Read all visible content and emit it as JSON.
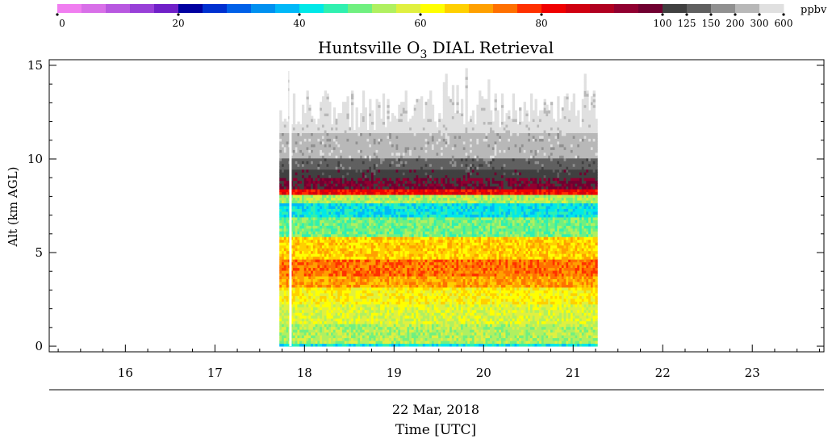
{
  "chart_data": {
    "type": "heatmap",
    "title": "Huntsville O",
    "title_sub": "3",
    "title_suffix": " DIAL Retrieval",
    "ylabel": "Alt (km AGL)",
    "date_label": "22 Mar, 2018",
    "xlabel": "Time [UTC]",
    "xlim": [
      15.15,
      23.8
    ],
    "ylim": [
      -0.3,
      15.3
    ],
    "x_ticks": [
      16,
      17,
      18,
      19,
      20,
      21,
      22,
      23
    ],
    "y_ticks": [
      0,
      5,
      10,
      15
    ],
    "data_x_range": [
      17.72,
      21.25
    ],
    "data_y_range": [
      0,
      15
    ],
    "gap_x": 17.83,
    "colorbar": {
      "unit": "ppbv",
      "ticks": [
        "0",
        "20",
        "40",
        "60",
        "80",
        "100",
        "125",
        "150",
        "200",
        "300",
        "600"
      ],
      "colors": [
        "#f07ef0",
        "#d870e8",
        "#b858e0",
        "#9840d8",
        "#7020c8",
        "#0000a0",
        "#0030d0",
        "#0060e8",
        "#0090f0",
        "#00b8f8",
        "#00e8e8",
        "#30f0b0",
        "#70f080",
        "#b0f060",
        "#e0f040",
        "#ffff00",
        "#ffd000",
        "#ffa000",
        "#ff7000",
        "#ff3000",
        "#f00000",
        "#d00010",
        "#b00020",
        "#900030",
        "#700030",
        "#404040",
        "#606060",
        "#909090",
        "#b8b8b8",
        "#e0e0e0"
      ]
    },
    "profile": [
      {
        "alt_min": 0.0,
        "alt_max": 0.15,
        "level": 10
      },
      {
        "alt_min": 0.15,
        "alt_max": 1.2,
        "level": 13
      },
      {
        "alt_min": 1.2,
        "alt_max": 2.2,
        "level": 14
      },
      {
        "alt_min": 2.2,
        "alt_max": 3.0,
        "level": 15
      },
      {
        "alt_min": 3.0,
        "alt_max": 3.6,
        "level": 17
      },
      {
        "alt_min": 3.6,
        "alt_max": 4.6,
        "level": 18
      },
      {
        "alt_min": 4.6,
        "alt_max": 5.8,
        "level": 16
      },
      {
        "alt_min": 5.8,
        "alt_max": 6.8,
        "level": 12
      },
      {
        "alt_min": 6.8,
        "alt_max": 7.6,
        "level": 10
      },
      {
        "alt_min": 7.6,
        "alt_max": 8.1,
        "level": 13
      },
      {
        "alt_min": 8.1,
        "alt_max": 8.4,
        "level": 20
      },
      {
        "alt_min": 8.4,
        "alt_max": 8.9,
        "level": 24
      },
      {
        "alt_min": 8.9,
        "alt_max": 9.4,
        "level": 25
      },
      {
        "alt_min": 9.4,
        "alt_max": 10.0,
        "level": 26
      },
      {
        "alt_min": 10.0,
        "alt_max": 11.4,
        "level": 28
      },
      {
        "alt_min": 11.4,
        "alt_max": 13.2,
        "level": 29
      }
    ]
  }
}
